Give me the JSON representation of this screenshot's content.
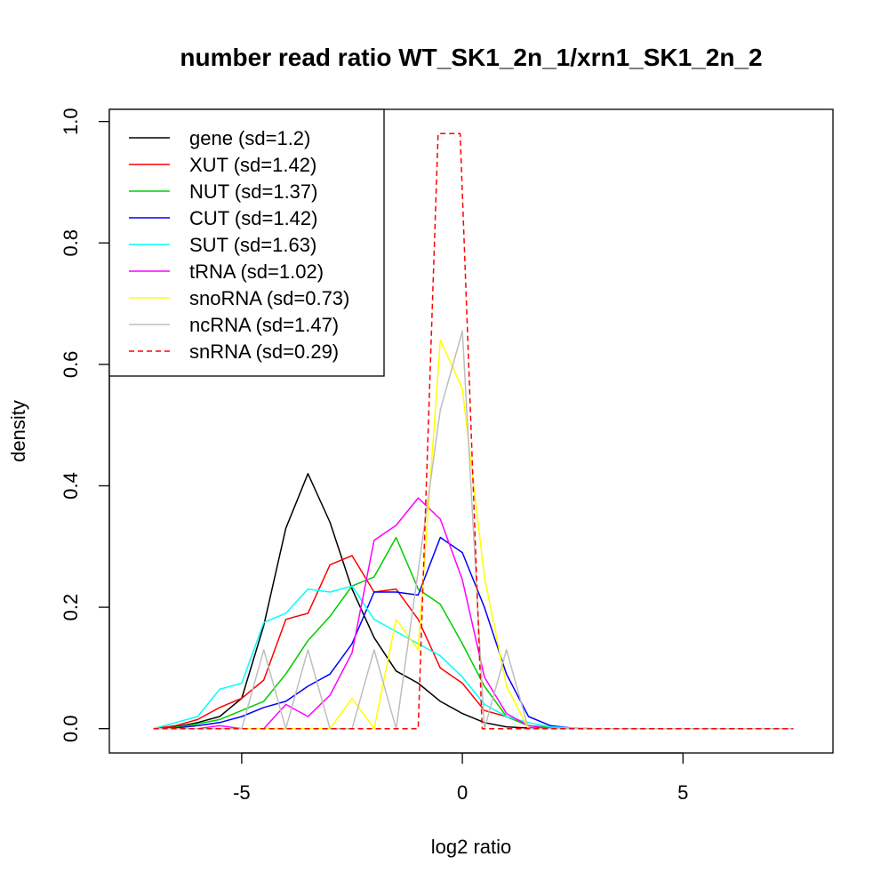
{
  "chart_data": {
    "type": "line",
    "title": "number read ratio WT_SK1_2n_1/xrn1_SK1_2n_2",
    "xlabel": "log2 ratio",
    "ylabel": "density",
    "xlim": [
      -8.0,
      8.4
    ],
    "ylim": [
      -0.04,
      1.02
    ],
    "xticks": [
      -5,
      0,
      5
    ],
    "xtick_labels": [
      "-5",
      "0",
      "5"
    ],
    "yticks": [
      0.0,
      0.2,
      0.4,
      0.6,
      0.8,
      1.0
    ],
    "ytick_labels": [
      "0.0",
      "0.2",
      "0.4",
      "0.6",
      "0.8",
      "1.0"
    ],
    "grid": false,
    "legend_position": "top-left",
    "series": [
      {
        "name": "gene (sd=1.2)",
        "color": "#000000",
        "dash": false,
        "x": [
          -7.0,
          -6.5,
          -6.0,
          -5.5,
          -5.0,
          -4.5,
          -4.0,
          -3.5,
          -3.0,
          -2.5,
          -2.0,
          -1.5,
          -1.0,
          -0.5,
          0.0,
          0.5,
          1.0,
          1.5,
          2.0,
          2.5,
          3.0,
          4.0,
          5.0,
          6.0,
          7.5
        ],
        "y": [
          0.0,
          0.003,
          0.01,
          0.02,
          0.05,
          0.17,
          0.33,
          0.42,
          0.34,
          0.23,
          0.15,
          0.095,
          0.075,
          0.045,
          0.025,
          0.01,
          0.003,
          0.001,
          0.0,
          0.0,
          0.0,
          0.0,
          0.0,
          0.0,
          0.0
        ]
      },
      {
        "name": "XUT (sd=1.42)",
        "color": "#ff0000",
        "dash": false,
        "x": [
          -7.0,
          -6.5,
          -6.0,
          -5.5,
          -5.0,
          -4.5,
          -4.0,
          -3.5,
          -3.0,
          -2.5,
          -2.0,
          -1.5,
          -1.0,
          -0.5,
          0.0,
          0.5,
          1.0,
          1.5,
          2.0,
          2.5,
          3.0,
          4.0,
          5.0,
          6.0,
          7.5
        ],
        "y": [
          0.0,
          0.005,
          0.015,
          0.035,
          0.05,
          0.08,
          0.18,
          0.19,
          0.27,
          0.285,
          0.225,
          0.23,
          0.18,
          0.1,
          0.075,
          0.03,
          0.02,
          0.005,
          0.002,
          0.0,
          0.0,
          0.0,
          0.0,
          0.0,
          0.0
        ]
      },
      {
        "name": "NUT (sd=1.37)",
        "color": "#00cd00",
        "dash": false,
        "x": [
          -7.0,
          -6.5,
          -6.0,
          -5.5,
          -5.0,
          -4.5,
          -4.0,
          -3.5,
          -3.0,
          -2.5,
          -2.0,
          -1.5,
          -1.0,
          -0.5,
          0.0,
          0.5,
          1.0,
          1.5,
          2.0,
          2.5,
          3.0,
          4.0,
          5.0,
          6.0,
          7.5
        ],
        "y": [
          0.0,
          0.002,
          0.008,
          0.015,
          0.03,
          0.045,
          0.09,
          0.145,
          0.185,
          0.235,
          0.25,
          0.315,
          0.23,
          0.205,
          0.14,
          0.07,
          0.02,
          0.005,
          0.002,
          0.0,
          0.0,
          0.0,
          0.0,
          0.0,
          0.0
        ]
      },
      {
        "name": "CUT (sd=1.42)",
        "color": "#0000ff",
        "dash": false,
        "x": [
          -7.0,
          -6.5,
          -6.0,
          -5.5,
          -5.0,
          -4.5,
          -4.0,
          -3.5,
          -3.0,
          -2.5,
          -2.0,
          -1.5,
          -1.0,
          -0.5,
          0.0,
          0.5,
          1.0,
          1.5,
          2.0,
          2.5,
          3.0,
          4.0,
          5.0,
          6.0,
          7.5
        ],
        "y": [
          0.0,
          0.001,
          0.005,
          0.01,
          0.02,
          0.035,
          0.045,
          0.07,
          0.09,
          0.14,
          0.225,
          0.225,
          0.22,
          0.315,
          0.29,
          0.2,
          0.09,
          0.02,
          0.005,
          0.001,
          0.0,
          0.0,
          0.0,
          0.0,
          0.0
        ]
      },
      {
        "name": "SUT (sd=1.63)",
        "color": "#00ffff",
        "dash": false,
        "x": [
          -7.0,
          -6.5,
          -6.0,
          -5.5,
          -5.0,
          -4.5,
          -4.0,
          -3.5,
          -3.0,
          -2.5,
          -2.0,
          -1.5,
          -1.0,
          -0.5,
          0.0,
          0.5,
          1.0,
          1.5,
          2.0,
          2.5,
          3.0,
          4.0,
          5.0,
          6.0,
          7.5
        ],
        "y": [
          0.0,
          0.01,
          0.02,
          0.065,
          0.075,
          0.175,
          0.19,
          0.23,
          0.225,
          0.235,
          0.18,
          0.16,
          0.14,
          0.12,
          0.085,
          0.04,
          0.02,
          0.01,
          0.003,
          0.001,
          0.0,
          0.0,
          0.0,
          0.0,
          0.0
        ]
      },
      {
        "name": "tRNA (sd=1.02)",
        "color": "#ff00ff",
        "dash": false,
        "x": [
          -7.0,
          -6.5,
          -6.0,
          -5.5,
          -5.0,
          -4.5,
          -4.0,
          -3.5,
          -3.0,
          -2.5,
          -2.0,
          -1.5,
          -1.0,
          -0.5,
          0.0,
          0.5,
          1.0,
          1.5,
          2.0,
          2.5,
          3.0,
          4.0,
          5.0,
          6.0,
          7.5
        ],
        "y": [
          0.0,
          0.0,
          0.0,
          0.005,
          0.0,
          0.0,
          0.04,
          0.02,
          0.055,
          0.125,
          0.31,
          0.335,
          0.38,
          0.345,
          0.245,
          0.085,
          0.025,
          0.005,
          0.0,
          0.0,
          0.0,
          0.0,
          0.0,
          0.0,
          0.0
        ]
      },
      {
        "name": "snoRNA (sd=0.73)",
        "color": "#ffff00",
        "dash": false,
        "x": [
          -7.0,
          -6.5,
          -6.0,
          -5.5,
          -5.0,
          -4.5,
          -4.0,
          -3.5,
          -3.0,
          -2.5,
          -2.0,
          -1.5,
          -1.0,
          -0.5,
          0.0,
          0.5,
          1.0,
          1.5,
          2.0,
          2.5,
          3.0,
          4.0,
          5.0,
          6.0,
          7.5
        ],
        "y": [
          0.0,
          0.0,
          0.0,
          0.0,
          0.0,
          0.0,
          0.0,
          0.0,
          0.0,
          0.05,
          0.0,
          0.18,
          0.13,
          0.64,
          0.56,
          0.25,
          0.07,
          0.0,
          0.0,
          0.0,
          0.0,
          0.0,
          0.0,
          0.0,
          0.0
        ]
      },
      {
        "name": "ncRNA (sd=1.47)",
        "color": "#bebebe",
        "dash": false,
        "x": [
          -7.0,
          -6.5,
          -6.0,
          -5.5,
          -5.0,
          -4.5,
          -4.0,
          -3.5,
          -3.0,
          -2.5,
          -2.0,
          -1.5,
          -1.0,
          -0.5,
          0.0,
          0.5,
          1.0,
          1.5,
          2.0,
          2.5,
          3.0,
          4.0,
          5.0,
          6.0,
          7.5
        ],
        "y": [
          0.0,
          0.0,
          0.0,
          0.0,
          0.0,
          0.13,
          0.0,
          0.13,
          0.0,
          0.0,
          0.13,
          0.0,
          0.26,
          0.525,
          0.655,
          0.0,
          0.13,
          0.0,
          0.0,
          0.0,
          0.0,
          0.0,
          0.0,
          0.0,
          0.0
        ]
      },
      {
        "name": "snRNA (sd=0.29)",
        "color": "#ff0000",
        "dash": true,
        "x": [
          -7.0,
          -1.0,
          -0.55,
          -0.05,
          0.45,
          7.5
        ],
        "y": [
          0.0,
          0.0,
          0.98,
          0.98,
          0.0,
          0.0
        ]
      }
    ]
  }
}
